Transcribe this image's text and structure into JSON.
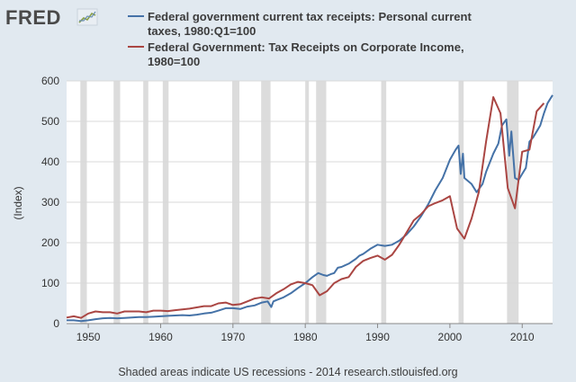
{
  "header": {
    "logo_text": "FRED",
    "logo_icon": "line-chart-icon"
  },
  "footer": {
    "note": "Shaded areas indicate US recessions - 2014 research.stlouisfed.org"
  },
  "colors": {
    "background": "#e1e9f0",
    "plot_background": "#ffffff",
    "recession_shade": "#dcdcdc",
    "series_personal": "#4572a7",
    "series_corporate": "#aa4643"
  },
  "chart_data": {
    "type": "line",
    "title": "",
    "xlabel": "",
    "ylabel": "(Index)",
    "xlim": [
      1947,
      2014.2
    ],
    "ylim": [
      0,
      600
    ],
    "x_ticks": [
      1950,
      1960,
      1970,
      1980,
      1990,
      2000,
      2010
    ],
    "y_ticks": [
      0,
      100,
      200,
      300,
      400,
      500,
      600
    ],
    "grid": "horizontal",
    "legend_position": "top",
    "recessions": [
      [
        1948.9,
        1949.8
      ],
      [
        1953.5,
        1954.4
      ],
      [
        1957.6,
        1958.3
      ],
      [
        1960.3,
        1961.1
      ],
      [
        1969.9,
        1970.9
      ],
      [
        1973.9,
        1975.2
      ],
      [
        1980.0,
        1980.5
      ],
      [
        1981.5,
        1982.9
      ],
      [
        1990.5,
        1991.2
      ],
      [
        2001.2,
        2001.9
      ],
      [
        2007.9,
        2009.5
      ]
    ],
    "series": [
      {
        "name": "Federal government current tax receipts: Personal current taxes, 1980:Q1=100",
        "legend_lines": [
          "Federal government current tax receipts: Personal current",
          "taxes, 1980:Q1=100"
        ],
        "color": "#4572a7",
        "points": [
          [
            1947,
            8
          ],
          [
            1948,
            8
          ],
          [
            1949,
            6
          ],
          [
            1950,
            8
          ],
          [
            1951,
            11
          ],
          [
            1952,
            13
          ],
          [
            1953,
            14
          ],
          [
            1954,
            13
          ],
          [
            1955,
            14
          ],
          [
            1956,
            15
          ],
          [
            1957,
            16
          ],
          [
            1958,
            16
          ],
          [
            1959,
            17
          ],
          [
            1960,
            18
          ],
          [
            1961,
            19
          ],
          [
            1962,
            20
          ],
          [
            1963,
            21
          ],
          [
            1964,
            20
          ],
          [
            1965,
            22
          ],
          [
            1966,
            25
          ],
          [
            1967,
            27
          ],
          [
            1968,
            32
          ],
          [
            1969,
            38
          ],
          [
            1970,
            38
          ],
          [
            1971,
            36
          ],
          [
            1972,
            42
          ],
          [
            1973,
            45
          ],
          [
            1974,
            52
          ],
          [
            1974.8,
            55
          ],
          [
            1975.3,
            41
          ],
          [
            1975.6,
            55
          ],
          [
            1976,
            58
          ],
          [
            1977,
            65
          ],
          [
            1978,
            75
          ],
          [
            1979,
            88
          ],
          [
            1980,
            100
          ],
          [
            1981,
            115
          ],
          [
            1981.8,
            125
          ],
          [
            1982.5,
            120
          ],
          [
            1983,
            118
          ],
          [
            1983.5,
            122
          ],
          [
            1984,
            125
          ],
          [
            1984.5,
            138
          ],
          [
            1985,
            140
          ],
          [
            1986,
            148
          ],
          [
            1987,
            160
          ],
          [
            1987.5,
            168
          ],
          [
            1988,
            172
          ],
          [
            1989,
            185
          ],
          [
            1990,
            195
          ],
          [
            1991,
            192
          ],
          [
            1992,
            195
          ],
          [
            1993,
            205
          ],
          [
            1994,
            220
          ],
          [
            1995,
            240
          ],
          [
            1996,
            265
          ],
          [
            1997,
            295
          ],
          [
            1998,
            330
          ],
          [
            1999,
            360
          ],
          [
            2000,
            405
          ],
          [
            2000.8,
            430
          ],
          [
            2001.2,
            440
          ],
          [
            2001.5,
            370
          ],
          [
            2001.8,
            420
          ],
          [
            2002,
            360
          ],
          [
            2003,
            345
          ],
          [
            2003.7,
            325
          ],
          [
            2004.5,
            345
          ],
          [
            2005,
            375
          ],
          [
            2006,
            420
          ],
          [
            2006.7,
            445
          ],
          [
            2007.2,
            490
          ],
          [
            2007.8,
            505
          ],
          [
            2008.2,
            415
          ],
          [
            2008.5,
            475
          ],
          [
            2009,
            360
          ],
          [
            2009.5,
            355
          ],
          [
            2010,
            370
          ],
          [
            2010.5,
            385
          ],
          [
            2011,
            450
          ],
          [
            2011.5,
            460
          ],
          [
            2012,
            475
          ],
          [
            2012.5,
            490
          ],
          [
            2013,
            520
          ],
          [
            2013.5,
            545
          ],
          [
            2014.2,
            565
          ]
        ]
      },
      {
        "name": "Federal Government: Tax Receipts on Corporate Income, 1980=100",
        "legend_lines": [
          "Federal Government: Tax Receipts on Corporate Income,",
          "1980=100"
        ],
        "color": "#aa4643",
        "points": [
          [
            1947,
            15
          ],
          [
            1948,
            18
          ],
          [
            1949,
            14
          ],
          [
            1950,
            25
          ],
          [
            1951,
            30
          ],
          [
            1952,
            28
          ],
          [
            1953,
            28
          ],
          [
            1954,
            25
          ],
          [
            1955,
            30
          ],
          [
            1956,
            30
          ],
          [
            1957,
            30
          ],
          [
            1958,
            28
          ],
          [
            1959,
            32
          ],
          [
            1960,
            32
          ],
          [
            1961,
            31
          ],
          [
            1962,
            33
          ],
          [
            1963,
            35
          ],
          [
            1964,
            37
          ],
          [
            1965,
            40
          ],
          [
            1966,
            43
          ],
          [
            1967,
            43
          ],
          [
            1968,
            50
          ],
          [
            1969,
            52
          ],
          [
            1970,
            46
          ],
          [
            1971,
            48
          ],
          [
            1972,
            55
          ],
          [
            1973,
            62
          ],
          [
            1974,
            65
          ],
          [
            1975,
            62
          ],
          [
            1976,
            75
          ],
          [
            1977,
            85
          ],
          [
            1978,
            97
          ],
          [
            1979,
            103
          ],
          [
            1980,
            100
          ],
          [
            1981,
            95
          ],
          [
            1982,
            70
          ],
          [
            1983,
            80
          ],
          [
            1984,
            100
          ],
          [
            1985,
            110
          ],
          [
            1986,
            115
          ],
          [
            1987,
            140
          ],
          [
            1988,
            155
          ],
          [
            1989,
            162
          ],
          [
            1990,
            168
          ],
          [
            1991,
            158
          ],
          [
            1992,
            170
          ],
          [
            1993,
            195
          ],
          [
            1994,
            225
          ],
          [
            1995,
            255
          ],
          [
            1996,
            270
          ],
          [
            1997,
            290
          ],
          [
            1998,
            298
          ],
          [
            1999,
            305
          ],
          [
            2000,
            315
          ],
          [
            2001,
            235
          ],
          [
            2002,
            210
          ],
          [
            2003,
            260
          ],
          [
            2004,
            325
          ],
          [
            2005,
            450
          ],
          [
            2006,
            560
          ],
          [
            2007,
            520
          ],
          [
            2008,
            335
          ],
          [
            2009,
            285
          ],
          [
            2010,
            425
          ],
          [
            2011,
            430
          ],
          [
            2012,
            525
          ],
          [
            2013,
            545
          ]
        ]
      }
    ]
  }
}
